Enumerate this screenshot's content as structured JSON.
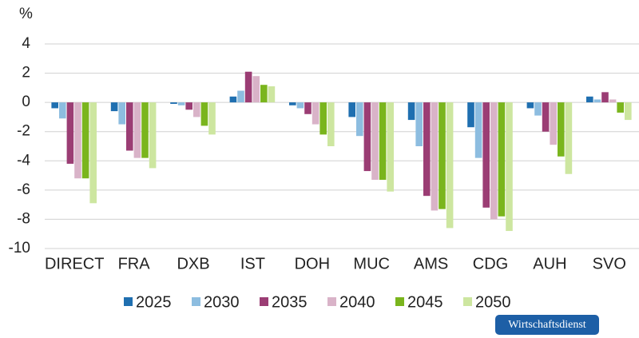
{
  "chart_data": {
    "type": "bar",
    "y_label": "%",
    "categories": [
      "DIRECT",
      "FRA",
      "DXB",
      "IST",
      "DOH",
      "MUC",
      "AMS",
      "CDG",
      "AUH",
      "SVO"
    ],
    "series": [
      {
        "name": "2025",
        "color": "#1f6fb0",
        "values": [
          -0.4,
          -0.6,
          -0.1,
          0.4,
          -0.2,
          -1.0,
          -1.2,
          -1.7,
          -0.4,
          0.4
        ]
      },
      {
        "name": "2030",
        "color": "#8dbde0",
        "values": [
          -1.1,
          -1.5,
          -0.2,
          0.8,
          -0.4,
          -2.3,
          -3.0,
          -3.8,
          -0.9,
          0.2
        ]
      },
      {
        "name": "2035",
        "color": "#9b3d74",
        "values": [
          -4.2,
          -3.3,
          -0.5,
          2.1,
          -0.8,
          -4.7,
          -6.4,
          -7.2,
          -2.0,
          0.7
        ]
      },
      {
        "name": "2040",
        "color": "#d9b3c8",
        "values": [
          -5.2,
          -3.8,
          -1.0,
          1.8,
          -1.5,
          -5.3,
          -7.4,
          -8.0,
          -2.9,
          0.2
        ]
      },
      {
        "name": "2045",
        "color": "#7ab51d",
        "values": [
          -5.2,
          -3.8,
          -1.6,
          1.2,
          -2.2,
          -5.3,
          -7.3,
          -7.8,
          -3.7,
          -0.7
        ]
      },
      {
        "name": "2050",
        "color": "#cde6a0",
        "values": [
          -6.9,
          -4.5,
          -2.2,
          1.1,
          -3.0,
          -6.1,
          -8.6,
          -8.8,
          -4.9,
          -1.2
        ]
      }
    ],
    "ylim": [
      -10,
      4
    ],
    "yticks": [
      -10,
      -8,
      -6,
      -4,
      -2,
      0,
      2,
      4
    ],
    "grid": true,
    "watermark": "Wirtschaftsdienst"
  }
}
